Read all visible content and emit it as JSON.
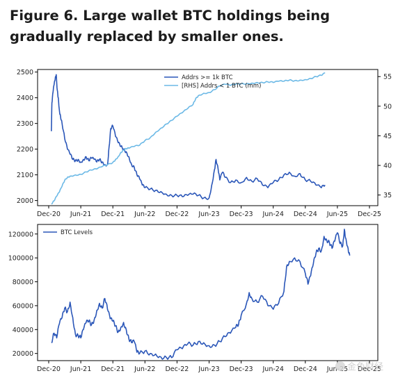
{
  "figure": {
    "title": "Figure 6. Large wallet BTC holdings being gradually replaced by smaller ones."
  },
  "colors": {
    "large_addrs": "#2a56b8",
    "small_addrs": "#6cb9e6",
    "btc": "#2a56b8",
    "axis": "#000000",
    "text": "#1c1c1c"
  },
  "watermark": {
    "text": "金色财经"
  },
  "chart_data": [
    {
      "type": "line",
      "x_ticks": [
        "Dec-20",
        "Jun-21",
        "Dec-21",
        "Jun-22",
        "Dec-22",
        "Jun-23",
        "Dec-23",
        "Jun-24",
        "Dec-24",
        "Jun-25",
        "Dec-25"
      ],
      "y_left": {
        "ticks": [
          2000,
          2100,
          2200,
          2300,
          2400,
          2500
        ],
        "range": [
          1980,
          2510
        ]
      },
      "y_right": {
        "ticks": [
          35,
          40,
          45,
          50,
          55
        ],
        "range": [
          33.2,
          56.2
        ]
      },
      "legend_position": "top-center",
      "grid": false,
      "series": [
        {
          "name": "Addrs >= 1k BTC",
          "axis": "left",
          "points": [
            [
              0.5,
              2270
            ],
            [
              0.6,
              2380
            ],
            [
              0.8,
              2420
            ],
            [
              1.0,
              2450
            ],
            [
              1.2,
              2470
            ],
            [
              1.4,
              2490
            ],
            [
              1.6,
              2430
            ],
            [
              1.8,
              2400
            ],
            [
              2.0,
              2350
            ],
            [
              2.2,
              2330
            ],
            [
              2.5,
              2300
            ],
            [
              3.0,
              2240
            ],
            [
              3.5,
              2200
            ],
            [
              4.0,
              2180
            ],
            [
              4.5,
              2160
            ],
            [
              5.0,
              2155
            ],
            [
              5.5,
              2160
            ],
            [
              6.0,
              2150
            ],
            [
              6.5,
              2160
            ],
            [
              7.0,
              2170
            ],
            [
              7.5,
              2155
            ],
            [
              8.0,
              2165
            ],
            [
              8.5,
              2160
            ],
            [
              9.0,
              2150
            ],
            [
              9.5,
              2160
            ],
            [
              10.0,
              2150
            ],
            [
              10.5,
              2140
            ],
            [
              11.0,
              2140
            ],
            [
              11.3,
              2210
            ],
            [
              11.6,
              2280
            ],
            [
              12.0,
              2290
            ],
            [
              12.5,
              2250
            ],
            [
              13.0,
              2225
            ],
            [
              13.5,
              2210
            ],
            [
              14.0,
              2200
            ],
            [
              14.5,
              2190
            ],
            [
              15.0,
              2170
            ],
            [
              15.5,
              2140
            ],
            [
              16.0,
              2130
            ],
            [
              16.5,
              2100
            ],
            [
              17.0,
              2085
            ],
            [
              17.5,
              2060
            ],
            [
              18.0,
              2050
            ],
            [
              19.0,
              2045
            ],
            [
              20.0,
              2040
            ],
            [
              21.0,
              2035
            ],
            [
              22.0,
              2025
            ],
            [
              23.0,
              2020
            ],
            [
              24.0,
              2020
            ],
            [
              25.0,
              2015
            ],
            [
              26.0,
              2020
            ],
            [
              27.0,
              2025
            ],
            [
              28.0,
              2020
            ],
            [
              29.0,
              2010
            ],
            [
              30.0,
              2010
            ],
            [
              30.5,
              2060
            ],
            [
              31.0,
              2120
            ],
            [
              31.3,
              2160
            ],
            [
              31.7,
              2120
            ],
            [
              32.0,
              2080
            ],
            [
              32.5,
              2110
            ],
            [
              33.0,
              2090
            ],
            [
              34.0,
              2070
            ],
            [
              35.0,
              2080
            ],
            [
              36.0,
              2070
            ],
            [
              37.0,
              2090
            ],
            [
              38.0,
              2075
            ],
            [
              39.0,
              2085
            ],
            [
              40.0,
              2060
            ],
            [
              41.0,
              2050
            ],
            [
              42.0,
              2070
            ],
            [
              43.0,
              2080
            ],
            [
              44.0,
              2100
            ],
            [
              45.0,
              2110
            ],
            [
              46.0,
              2095
            ],
            [
              47.0,
              2105
            ],
            [
              48.0,
              2080
            ],
            [
              49.0,
              2075
            ],
            [
              50.0,
              2060
            ],
            [
              51.0,
              2050
            ],
            [
              51.7,
              2060
            ]
          ]
        },
        {
          "name": "[RHS] Addrs < 1 BTC (mm)",
          "axis": "right",
          "points": [
            [
              0.5,
              33.5
            ],
            [
              1.0,
              34.0
            ],
            [
              1.5,
              34.8
            ],
            [
              2.0,
              35.5
            ],
            [
              2.5,
              36.5
            ],
            [
              3.0,
              37.5
            ],
            [
              3.5,
              38.0
            ],
            [
              4.0,
              38.2
            ],
            [
              5.0,
              38.4
            ],
            [
              6.0,
              38.5
            ],
            [
              7.0,
              38.9
            ],
            [
              8.0,
              39.2
            ],
            [
              9.0,
              39.4
            ],
            [
              10.0,
              39.8
            ],
            [
              11.0,
              40.1
            ],
            [
              12.0,
              40.5
            ],
            [
              12.5,
              41.0
            ],
            [
              13.0,
              41.5
            ],
            [
              13.5,
              42.2
            ],
            [
              14.0,
              42.6
            ],
            [
              14.5,
              42.8
            ],
            [
              15.0,
              42.9
            ],
            [
              16.0,
              43.2
            ],
            [
              17.0,
              43.4
            ],
            [
              18.0,
              44.2
            ],
            [
              19.0,
              44.7
            ],
            [
              20.0,
              45.6
            ],
            [
              21.0,
              46.3
            ],
            [
              22.0,
              47.0
            ],
            [
              23.0,
              47.6
            ],
            [
              24.0,
              48.3
            ],
            [
              25.0,
              48.9
            ],
            [
              26.0,
              49.6
            ],
            [
              27.0,
              50.3
            ],
            [
              27.5,
              51.3
            ],
            [
              28.0,
              51.8
            ],
            [
              29.0,
              52.2
            ],
            [
              30.0,
              52.3
            ],
            [
              31.0,
              52.8
            ],
            [
              32.0,
              53.4
            ],
            [
              33.0,
              53.7
            ],
            [
              34.0,
              53.5
            ],
            [
              35.0,
              53.7
            ],
            [
              36.0,
              53.8
            ],
            [
              37.0,
              53.8
            ],
            [
              38.0,
              53.9
            ],
            [
              39.0,
              54.0
            ],
            [
              40.0,
              54.0
            ],
            [
              41.0,
              54.1
            ],
            [
              42.0,
              54.0
            ],
            [
              43.0,
              54.2
            ],
            [
              44.0,
              54.2
            ],
            [
              45.0,
              54.4
            ],
            [
              46.0,
              54.3
            ],
            [
              47.0,
              54.4
            ],
            [
              48.0,
              54.5
            ],
            [
              49.0,
              54.7
            ],
            [
              50.0,
              55.0
            ],
            [
              51.0,
              55.2
            ],
            [
              51.7,
              55.6
            ]
          ]
        }
      ],
      "x_is_month_index_from_Dec-20": true
    },
    {
      "type": "line",
      "x_ticks": [
        "Dec-20",
        "Jun-21",
        "Dec-21",
        "Jun-22",
        "Dec-22",
        "Jun-23",
        "Dec-23",
        "Jun-24",
        "Dec-24",
        "Jun-25",
        "Dec-25"
      ],
      "y_left": {
        "ticks": [
          20000,
          40000,
          60000,
          80000,
          100000,
          120000
        ],
        "range": [
          14000,
          128000
        ]
      },
      "legend_position": "top-left",
      "grid": false,
      "series": [
        {
          "name": "BTC Levels",
          "axis": "left",
          "points": [
            [
              0.5,
              29000
            ],
            [
              1.0,
              37000
            ],
            [
              1.5,
              33000
            ],
            [
              2.0,
              45000
            ],
            [
              2.5,
              50000
            ],
            [
              3.0,
              58000
            ],
            [
              3.5,
              55000
            ],
            [
              4.0,
              63000
            ],
            [
              4.5,
              50000
            ],
            [
              5.0,
              36000
            ],
            [
              5.5,
              35000
            ],
            [
              6.0,
              33000
            ],
            [
              6.5,
              40000
            ],
            [
              7.0,
              46000
            ],
            [
              7.5,
              47000
            ],
            [
              8.0,
              44000
            ],
            [
              8.5,
              48000
            ],
            [
              9.0,
              56000
            ],
            [
              9.5,
              62000
            ],
            [
              10.0,
              58000
            ],
            [
              10.5,
              66000
            ],
            [
              11.0,
              57000
            ],
            [
              11.5,
              49000
            ],
            [
              12.0,
              47000
            ],
            [
              12.5,
              43000
            ],
            [
              13.0,
              38000
            ],
            [
              13.5,
              42000
            ],
            [
              14.0,
              46000
            ],
            [
              14.5,
              40000
            ],
            [
              15.0,
              32000
            ],
            [
              15.5,
              29000
            ],
            [
              16.0,
              30000
            ],
            [
              16.5,
              21000
            ],
            [
              17.0,
              20000
            ],
            [
              18.0,
              22000
            ],
            [
              19.0,
              20000
            ],
            [
              20.0,
              19500
            ],
            [
              21.0,
              17000
            ],
            [
              22.0,
              16800
            ],
            [
              23.0,
              16500
            ],
            [
              24.0,
              23000
            ],
            [
              25.0,
              24000
            ],
            [
              26.0,
              28000
            ],
            [
              27.0,
              27000
            ],
            [
              28.0,
              30000
            ],
            [
              29.0,
              29000
            ],
            [
              30.0,
              26500
            ],
            [
              31.0,
              27000
            ],
            [
              32.0,
              30000
            ],
            [
              33.0,
              34000
            ],
            [
              34.0,
              37000
            ],
            [
              35.0,
              42000
            ],
            [
              35.5,
              44000
            ],
            [
              36.0,
              52000
            ],
            [
              37.0,
              62000
            ],
            [
              37.5,
              71000
            ],
            [
              38.0,
              66000
            ],
            [
              39.0,
              63000
            ],
            [
              40.0,
              68000
            ],
            [
              41.0,
              60000
            ],
            [
              42.0,
              57000
            ],
            [
              43.0,
              62000
            ],
            [
              44.0,
              72000
            ],
            [
              44.5,
              93000
            ],
            [
              45.0,
              97000
            ],
            [
              46.0,
              100000
            ],
            [
              47.0,
              97000
            ],
            [
              48.0,
              87000
            ],
            [
              48.5,
              78000
            ],
            [
              49.0,
              85000
            ],
            [
              49.5,
              95000
            ],
            [
              50.0,
              104000
            ],
            [
              50.5,
              108000
            ],
            [
              51.0,
              106000
            ],
            [
              51.5,
              118000
            ],
            [
              52.0,
              115000
            ],
            [
              52.5,
              113000
            ],
            [
              53.0,
              108000
            ],
            [
              53.5,
              114000
            ],
            [
              54.0,
              121000
            ],
            [
              54.5,
              112000
            ],
            [
              55.0,
              110000
            ],
            [
              55.3,
              124000
            ],
            [
              55.6,
              116000
            ],
            [
              56.0,
              108000
            ],
            [
              56.3,
              102000
            ]
          ]
        }
      ]
    }
  ]
}
